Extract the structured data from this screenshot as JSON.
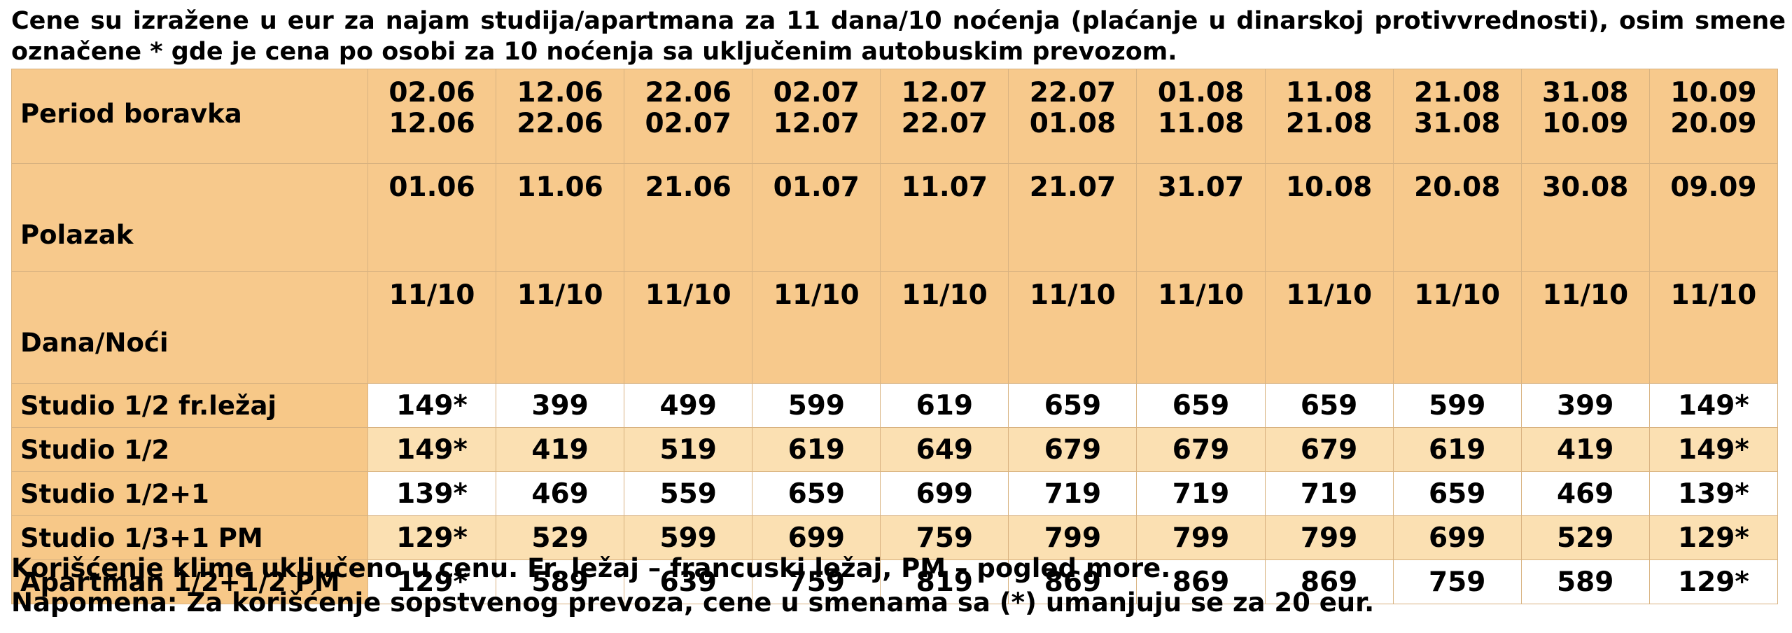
{
  "intro": "Cene su izražene u eur za najam studija/apartmana za 11 dana/10 noćenja (plaćanje u dinarskoj protivvrednosti), osim smene označene * gde je cena po osobi za 10 noćenja sa uključenim autobuskim prevozom.",
  "header_rows": [
    {
      "label": "Period boravka",
      "values": [
        [
          "02.06",
          "12.06"
        ],
        [
          "12.06",
          "22.06"
        ],
        [
          "22.06",
          "02.07"
        ],
        [
          "02.07",
          "12.07"
        ],
        [
          "12.07",
          "22.07"
        ],
        [
          "22.07",
          "01.08"
        ],
        [
          "01.08",
          "11.08"
        ],
        [
          "11.08",
          "21.08"
        ],
        [
          "21.08",
          "31.08"
        ],
        [
          "31.08",
          "10.09"
        ],
        [
          "10.09",
          "20.09"
        ]
      ]
    },
    {
      "label": "Polazak",
      "values": [
        "01.06",
        "11.06",
        "21.06",
        "01.07",
        "11.07",
        "21.07",
        "31.07",
        "10.08",
        "20.08",
        "30.08",
        "09.09"
      ]
    },
    {
      "label": "Dana/Noći",
      "values": [
        "11/10",
        "11/10",
        "11/10",
        "11/10",
        "11/10",
        "11/10",
        "11/10",
        "11/10",
        "11/10",
        "11/10",
        "11/10"
      ]
    }
  ],
  "price_rows": [
    {
      "label": "Studio 1/2 fr.ležaj",
      "values": [
        "149*",
        "399",
        "499",
        "599",
        "619",
        "659",
        "659",
        "659",
        "599",
        "399",
        "149*"
      ]
    },
    {
      "label": "Studio 1/2",
      "values": [
        "149*",
        "419",
        "519",
        "619",
        "649",
        "679",
        "679",
        "679",
        "619",
        "419",
        "149*"
      ]
    },
    {
      "label": "Studio 1/2+1",
      "values": [
        "139*",
        "469",
        "559",
        "659",
        "699",
        "719",
        "719",
        "719",
        "659",
        "469",
        "139*"
      ]
    },
    {
      "label": "Studio 1/3+1 PM",
      "values": [
        "129*",
        "529",
        "599",
        "699",
        "759",
        "799",
        "799",
        "799",
        "699",
        "529",
        "129*"
      ]
    },
    {
      "label": "Apartman 1/2+1/2 PM",
      "values": [
        "129*",
        "589",
        "639",
        "759",
        "819",
        "869",
        "869",
        "869",
        "759",
        "589",
        "129*"
      ]
    }
  ],
  "footer": {
    "line1": "Korišćenje klime uključeno u cenu. Fr. ležaj – francuski ležaj, PM – pogled more.",
    "line2": "Napomena: Za korišćenje sopstvenog prevoza, cene u smenama sa (*) umanjuju se za 20 eur."
  },
  "colors": {
    "header_bg": "#f7c98c",
    "row_label_bg": "#f7c888",
    "stripe_bg": "#fbe0b2",
    "white_bg": "#ffffff",
    "border": "#d8b280"
  }
}
